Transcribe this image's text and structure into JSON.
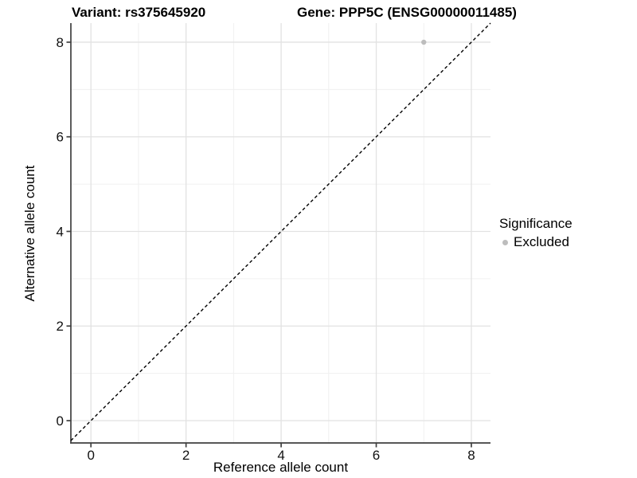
{
  "chart_data": {
    "type": "scatter",
    "titles": {
      "left": "Variant: rs375645920",
      "right": "Gene: PPP5C (ENSG00000011485)"
    },
    "xlabel": "Reference allele count",
    "ylabel": "Alternative allele count",
    "x_ticks": [
      0,
      2,
      4,
      6,
      8
    ],
    "y_ticks": [
      0,
      2,
      4,
      6,
      8
    ],
    "x_minor_ticks": [
      1,
      3,
      5,
      7
    ],
    "y_minor_ticks": [
      1,
      3,
      5,
      7
    ],
    "xlim": [
      -0.42,
      8.4
    ],
    "ylim": [
      -0.45,
      8.4
    ],
    "grid": true,
    "points": [
      {
        "x": 7,
        "y": 8,
        "series": "Excluded"
      }
    ],
    "reference_line": {
      "type": "identity",
      "equation": "y = x",
      "style": "dashed",
      "color": "#000000"
    },
    "legend": {
      "title": "Significance",
      "position": "right",
      "items": [
        {
          "label": "Excluded",
          "color": "#bdbdbd"
        }
      ]
    },
    "colors": {
      "point": "#bdbdbd",
      "grid_major": "#e2e2e2",
      "grid_minor": "#f0f0f0",
      "axis": "#3f3f3f",
      "text": "#111111",
      "background": "#ffffff"
    }
  }
}
